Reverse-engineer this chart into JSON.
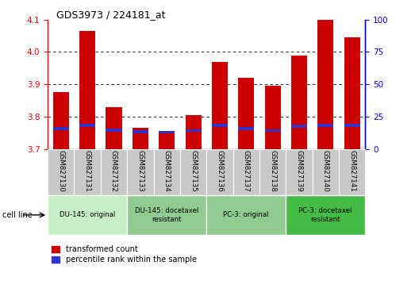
{
  "title": "GDS3973 / 224181_at",
  "categories": [
    "GSM827130",
    "GSM827131",
    "GSM827132",
    "GSM827133",
    "GSM827134",
    "GSM827135",
    "GSM827136",
    "GSM827137",
    "GSM827138",
    "GSM827139",
    "GSM827140",
    "GSM827141"
  ],
  "red_values": [
    3.875,
    4.065,
    3.83,
    3.765,
    3.755,
    3.805,
    3.97,
    3.92,
    3.895,
    3.99,
    4.1,
    4.045
  ],
  "blue_values": [
    3.763,
    3.773,
    3.758,
    3.753,
    3.752,
    3.757,
    3.773,
    3.763,
    3.757,
    3.77,
    3.773,
    3.773
  ],
  "ymin": 3.7,
  "ymax": 4.1,
  "y_ticks_left": [
    3.7,
    3.8,
    3.9,
    4.0,
    4.1
  ],
  "y_ticks_right": [
    0,
    25,
    50,
    75,
    100
  ],
  "red_color": "#cc0000",
  "blue_color": "#3333cc",
  "blue_bar_height": 0.009,
  "bar_width": 0.6,
  "group_colors": [
    "#c8eec8",
    "#90cc90",
    "#90cc90",
    "#44bb44"
  ],
  "group_labels": [
    "DU-145: original",
    "DU-145: docetaxel\nresistant",
    "PC-3: original",
    "PC-3: docetaxel\nresistant"
  ],
  "group_ranges": [
    [
      0,
      2
    ],
    [
      3,
      5
    ],
    [
      6,
      8
    ],
    [
      9,
      11
    ]
  ],
  "xtick_bg_color": "#c8c8c8",
  "legend_labels": [
    "transformed count",
    "percentile rank within the sample"
  ]
}
